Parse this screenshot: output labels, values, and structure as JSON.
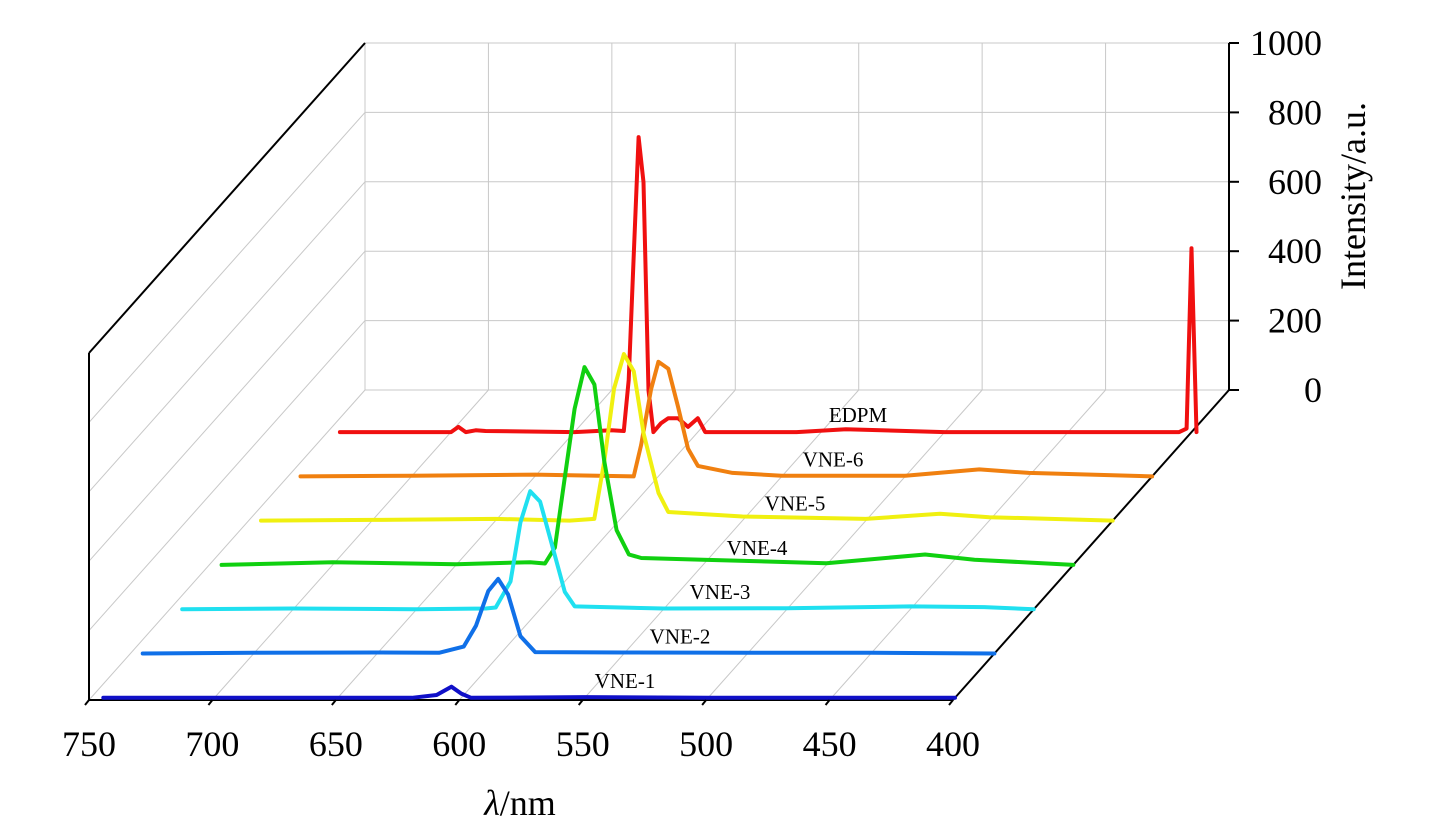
{
  "chart_data": {
    "type": "line",
    "subtype": "3d-waterfall",
    "x_axis": {
      "label_italic": "λ",
      "label_rest": "/nm",
      "ticks": [
        750,
        700,
        650,
        600,
        550,
        500,
        450,
        400
      ],
      "range": [
        750,
        400
      ]
    },
    "z_axis": {
      "label": "Intensity/a.u.",
      "ticks": [
        0,
        200,
        400,
        600,
        800,
        1000
      ],
      "range": [
        0,
        1000
      ]
    },
    "series": [
      {
        "name": "VNE-1",
        "color": "#1010c8",
        "points": [
          [
            745,
            0
          ],
          [
            700,
            0
          ],
          [
            650,
            0
          ],
          [
            620,
            0
          ],
          [
            610,
            8
          ],
          [
            604,
            32
          ],
          [
            600,
            12
          ],
          [
            596,
            0
          ],
          [
            550,
            2
          ],
          [
            500,
            0
          ],
          [
            450,
            0
          ],
          [
            400,
            0
          ]
        ]
      },
      {
        "name": "VNE-2",
        "color": "#1070e8",
        "points": [
          [
            745,
            0
          ],
          [
            700,
            2
          ],
          [
            650,
            3
          ],
          [
            625,
            2
          ],
          [
            615,
            20
          ],
          [
            610,
            80
          ],
          [
            605,
            180
          ],
          [
            601,
            215
          ],
          [
            597,
            170
          ],
          [
            592,
            50
          ],
          [
            586,
            4
          ],
          [
            550,
            3
          ],
          [
            500,
            2
          ],
          [
            450,
            2
          ],
          [
            400,
            0
          ]
        ]
      },
      {
        "name": "VNE-3",
        "color": "#20e0f0",
        "points": [
          [
            745,
            0
          ],
          [
            700,
            2
          ],
          [
            650,
            0
          ],
          [
            622,
            2
          ],
          [
            618,
            5
          ],
          [
            612,
            80
          ],
          [
            608,
            250
          ],
          [
            604,
            340
          ],
          [
            600,
            310
          ],
          [
            595,
            180
          ],
          [
            590,
            50
          ],
          [
            586,
            8
          ],
          [
            550,
            2
          ],
          [
            500,
            3
          ],
          [
            450,
            8
          ],
          [
            420,
            6
          ],
          [
            400,
            0
          ]
        ]
      },
      {
        "name": "VNE-4",
        "color": "#10d010",
        "points": [
          [
            745,
            0
          ],
          [
            700,
            8
          ],
          [
            650,
            2
          ],
          [
            620,
            8
          ],
          [
            614,
            4
          ],
          [
            610,
            50
          ],
          [
            606,
            250
          ],
          [
            602,
            450
          ],
          [
            598,
            570
          ],
          [
            594,
            520
          ],
          [
            590,
            300
          ],
          [
            585,
            100
          ],
          [
            580,
            30
          ],
          [
            575,
            20
          ],
          [
            550,
            15
          ],
          [
            500,
            5
          ],
          [
            460,
            30
          ],
          [
            440,
            15
          ],
          [
            400,
            0
          ]
        ]
      },
      {
        "name": "VNE-5",
        "color": "#f0f010",
        "points": [
          [
            745,
            0
          ],
          [
            700,
            2
          ],
          [
            650,
            5
          ],
          [
            620,
            0
          ],
          [
            610,
            5
          ],
          [
            606,
            170
          ],
          [
            602,
            380
          ],
          [
            598,
            480
          ],
          [
            594,
            430
          ],
          [
            590,
            250
          ],
          [
            584,
            80
          ],
          [
            580,
            25
          ],
          [
            550,
            12
          ],
          [
            500,
            5
          ],
          [
            470,
            20
          ],
          [
            450,
            10
          ],
          [
            400,
            0
          ]
        ]
      },
      {
        "name": "VNE-6",
        "color": "#f08010",
        "points": [
          [
            745,
            0
          ],
          [
            700,
            2
          ],
          [
            650,
            5
          ],
          [
            610,
            0
          ],
          [
            607,
            90
          ],
          [
            603,
            250
          ],
          [
            600,
            330
          ],
          [
            596,
            310
          ],
          [
            592,
            200
          ],
          [
            588,
            80
          ],
          [
            584,
            30
          ],
          [
            570,
            10
          ],
          [
            550,
            2
          ],
          [
            500,
            2
          ],
          [
            470,
            20
          ],
          [
            450,
            10
          ],
          [
            400,
            0
          ]
        ]
      },
      {
        "name": "EDPM",
        "color": "#f01010",
        "points": [
          [
            745,
            0
          ],
          [
            700,
            0
          ],
          [
            697,
            15
          ],
          [
            694,
            0
          ],
          [
            690,
            5
          ],
          [
            686,
            3
          ],
          [
            650,
            0
          ],
          [
            635,
            5
          ],
          [
            630,
            3
          ],
          [
            628,
            150
          ],
          [
            626,
            500
          ],
          [
            624,
            850
          ],
          [
            622,
            720
          ],
          [
            620,
            120
          ],
          [
            618,
            0
          ],
          [
            615,
            25
          ],
          [
            612,
            40
          ],
          [
            608,
            40
          ],
          [
            604,
            15
          ],
          [
            600,
            40
          ],
          [
            597,
            0
          ],
          [
            560,
            0
          ],
          [
            540,
            8
          ],
          [
            500,
            0
          ],
          [
            450,
            0
          ],
          [
            405,
            0
          ],
          [
            402,
            10
          ],
          [
            400,
            530
          ],
          [
            398,
            0
          ]
        ]
      }
    ]
  }
}
